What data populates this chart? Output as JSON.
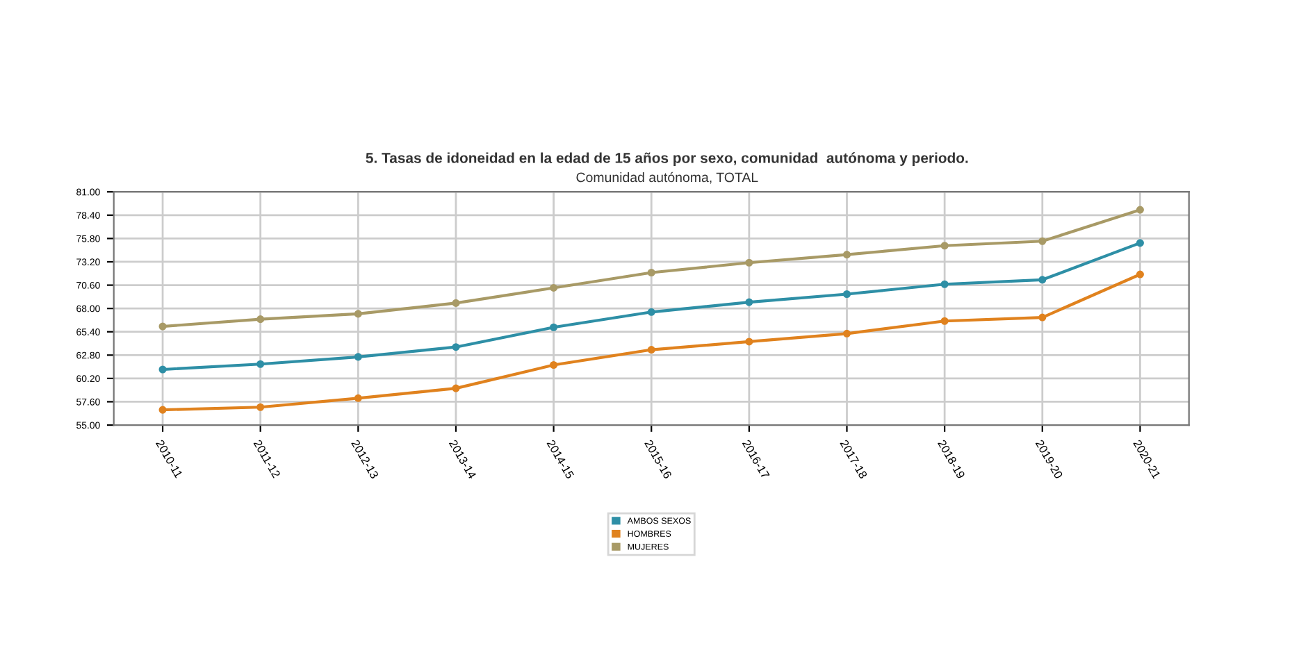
{
  "chart_data": {
    "type": "line",
    "title": "5. Tasas de idoneidad en la edad de 15 años por sexo, comunidad  autónoma y periodo.",
    "subtitle": "Comunidad autónoma, TOTAL",
    "categories": [
      "2010-11",
      "2011-12",
      "2012-13",
      "2013-14",
      "2014-15",
      "2015-16",
      "2016-17",
      "2017-18",
      "2018-19",
      "2019-20",
      "2020-21"
    ],
    "series": [
      {
        "name": "AMBOS SEXOS",
        "color": "#2e8fa6",
        "values": [
          61.2,
          61.8,
          62.6,
          63.7,
          65.9,
          67.6,
          68.7,
          69.6,
          70.7,
          71.2,
          75.3
        ]
      },
      {
        "name": "HOMBRES",
        "color": "#e0821e",
        "values": [
          56.7,
          57.0,
          58.0,
          59.1,
          61.7,
          63.4,
          64.3,
          65.2,
          66.6,
          67.0,
          71.8
        ]
      },
      {
        "name": "MUJERES",
        "color": "#a89a66",
        "values": [
          66.0,
          66.8,
          67.4,
          68.6,
          70.3,
          72.0,
          73.1,
          74.0,
          75.0,
          75.5,
          79.0
        ]
      }
    ],
    "ylim": [
      55,
      81
    ],
    "yticks": [
      {
        "value": 55,
        "label": "55.00"
      },
      {
        "value": 57.6,
        "label": "57.60"
      },
      {
        "value": 60.2,
        "label": "60.20"
      },
      {
        "value": 62.8,
        "label": "62.80"
      },
      {
        "value": 65.4,
        "label": "65.40"
      },
      {
        "value": 68,
        "label": "68.00"
      },
      {
        "value": 70.6,
        "label": "70.60"
      },
      {
        "value": 73.2,
        "label": "73.20"
      },
      {
        "value": 75.8,
        "label": "75.80"
      },
      {
        "value": 78.4,
        "label": "78.40"
      },
      {
        "value": 81,
        "label": "81.00"
      }
    ],
    "grid": true,
    "legend": "bottom",
    "marker": "circle",
    "line_style": "solid"
  }
}
